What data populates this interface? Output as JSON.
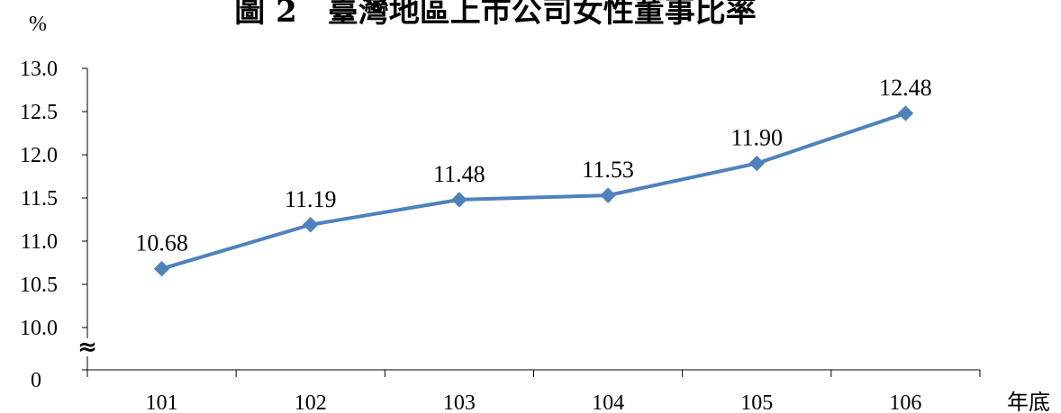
{
  "chart_data": {
    "type": "line",
    "title": "圖 2　臺灣地區上市公司女性董事比率",
    "ylabel": "%",
    "xlabel": "年底",
    "categories": [
      "101",
      "102",
      "103",
      "104",
      "105",
      "106"
    ],
    "values": [
      10.68,
      11.19,
      11.48,
      11.53,
      11.9,
      12.48
    ],
    "value_labels": [
      "10.68",
      "11.19",
      "11.48",
      "11.53",
      "11.90",
      "12.48"
    ],
    "yticks": [
      10.0,
      10.5,
      11.0,
      11.5,
      12.0,
      12.5,
      13.0
    ],
    "ytick_labels": [
      "10.0",
      "10.5",
      "11.0",
      "11.5",
      "12.0",
      "12.5",
      "13.0"
    ],
    "y_zero_label": "0",
    "axis_break_symbol": "≈",
    "ylim": [
      10.0,
      13.0
    ],
    "grid": false,
    "legend": "none",
    "line_color": "#4f81bd",
    "marker": "diamond"
  }
}
